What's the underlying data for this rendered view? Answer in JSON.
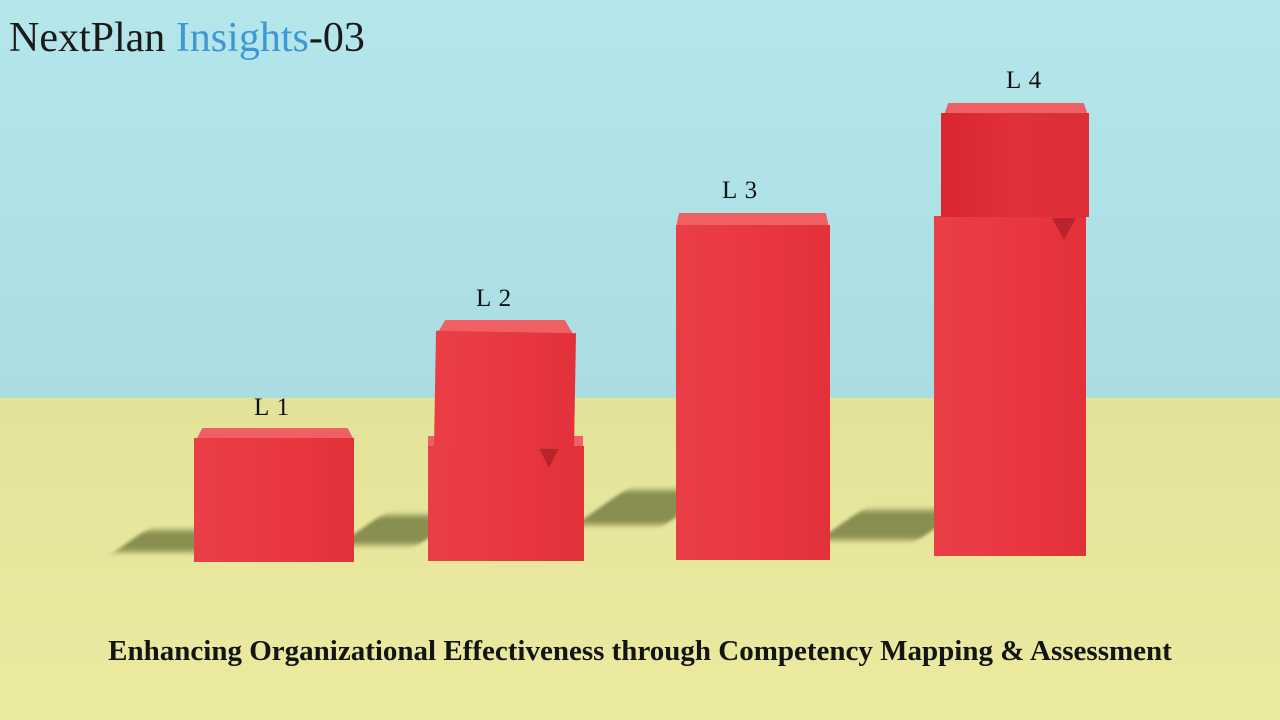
{
  "brand": {
    "part1": "NextPlan ",
    "accent": "Insights",
    "part2": "-03",
    "accent_color": "#3f98d6"
  },
  "levels": [
    {
      "label": "L 1"
    },
    {
      "label": "L 2"
    },
    {
      "label": "L 3"
    },
    {
      "label": "L 4"
    }
  ],
  "headline": "Enhancing Organizational Effectiveness through Competency Mapping & Assessment",
  "colors": {
    "sky": "#b4e6ea",
    "floor": "#e5e49c",
    "block": "#e9363f"
  }
}
